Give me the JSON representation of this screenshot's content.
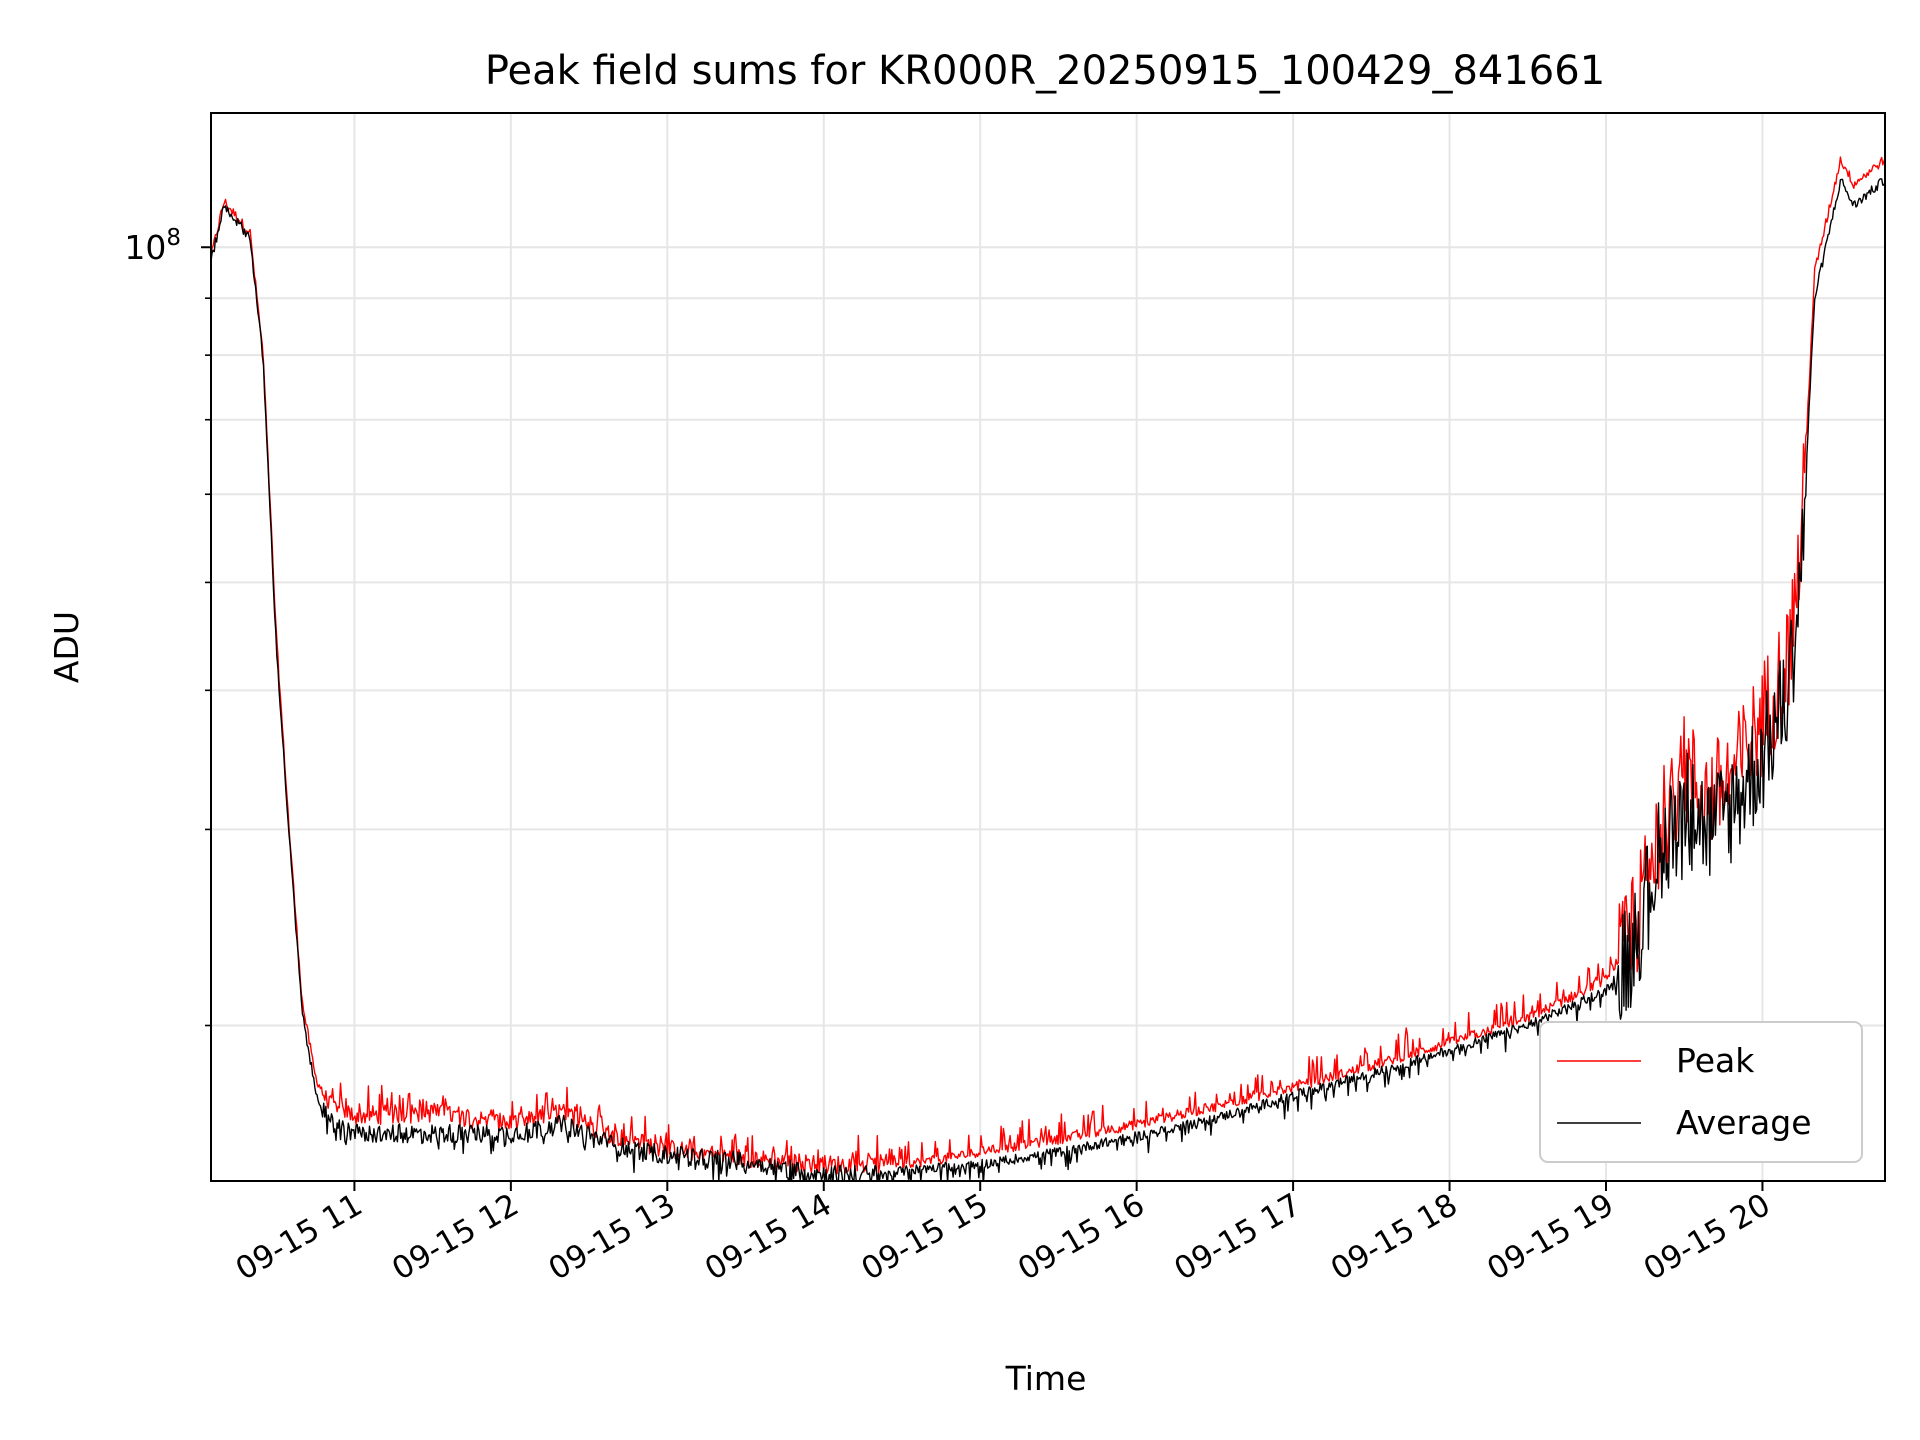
{
  "chart_data": {
    "type": "line",
    "title": "Peak field sums for KR000R_20250915_100429_841661",
    "xlabel": "Time",
    "ylabel": "ADU",
    "y_scale": "log",
    "x_range": [
      "2025-09-15 10:05",
      "2025-09-15 20:47"
    ],
    "ylim": [
      14500000,
      132000000
    ],
    "grid": true,
    "legend_position": "lower-right",
    "x_tick_labels": [
      "09-15 11",
      "09-15 12",
      "09-15 13",
      "09-15 14",
      "09-15 15",
      "09-15 16",
      "09-15 17",
      "09-15 18",
      "09-15 19",
      "09-15 20"
    ],
    "x_ticks": [
      "2025-09-15 11:00",
      "2025-09-15 12:00",
      "2025-09-15 13:00",
      "2025-09-15 14:00",
      "2025-09-15 15:00",
      "2025-09-15 16:00",
      "2025-09-15 17:00",
      "2025-09-15 18:00",
      "2025-09-15 19:00",
      "2025-09-15 20:00"
    ],
    "y_tick_major": {
      "value": 100000000,
      "base": "10",
      "exp": "8"
    },
    "y_minor_ticks": [
      20000000,
      30000000,
      40000000,
      50000000,
      60000000,
      70000000,
      80000000,
      90000000
    ],
    "series": [
      {
        "name": "Peak",
        "color": "#ff0000",
        "x": [
          "2025-09-15 10:05",
          "2025-09-15 10:10",
          "2025-09-15 10:20",
          "2025-09-15 10:25",
          "2025-09-15 10:30",
          "2025-09-15 10:35",
          "2025-09-15 10:40",
          "2025-09-15 10:45",
          "2025-09-15 10:50",
          "2025-09-15 11:00",
          "2025-09-15 11:30",
          "2025-09-15 12:00",
          "2025-09-15 12:20",
          "2025-09-15 12:40",
          "2025-09-15 13:00",
          "2025-09-15 13:30",
          "2025-09-15 14:00",
          "2025-09-15 14:20",
          "2025-09-15 14:40",
          "2025-09-15 15:00",
          "2025-09-15 15:30",
          "2025-09-15 16:00",
          "2025-09-15 16:30",
          "2025-09-15 17:00",
          "2025-09-15 17:30",
          "2025-09-15 18:00",
          "2025-09-15 18:30",
          "2025-09-15 19:00",
          "2025-09-15 19:10",
          "2025-09-15 19:20",
          "2025-09-15 19:30",
          "2025-09-15 19:40",
          "2025-09-15 19:50",
          "2025-09-15 20:00",
          "2025-09-15 20:10",
          "2025-09-15 20:15",
          "2025-09-15 20:20",
          "2025-09-15 20:30",
          "2025-09-15 20:35",
          "2025-09-15 20:47"
        ],
        "y": [
          98000000,
          110000000,
          103000000,
          80000000,
          45000000,
          30000000,
          21000000,
          18000000,
          17000000,
          16600000,
          16700000,
          16300000,
          16700000,
          15900000,
          15500000,
          15200000,
          15000000,
          15000000,
          15100000,
          15400000,
          15800000,
          16300000,
          16900000,
          17600000,
          18400000,
          19300000,
          20300000,
          22000000,
          24000000,
          30000000,
          34000000,
          32000000,
          34000000,
          38000000,
          43000000,
          55000000,
          95000000,
          120000000,
          114000000,
          120000000
        ]
      },
      {
        "name": "Average",
        "color": "#000000",
        "x": [
          "2025-09-15 10:05",
          "2025-09-15 10:10",
          "2025-09-15 10:20",
          "2025-09-15 10:25",
          "2025-09-15 10:30",
          "2025-09-15 10:35",
          "2025-09-15 10:40",
          "2025-09-15 10:45",
          "2025-09-15 10:50",
          "2025-09-15 11:00",
          "2025-09-15 11:30",
          "2025-09-15 12:00",
          "2025-09-15 12:20",
          "2025-09-15 12:40",
          "2025-09-15 13:00",
          "2025-09-15 13:30",
          "2025-09-15 14:00",
          "2025-09-15 14:20",
          "2025-09-15 14:40",
          "2025-09-15 15:00",
          "2025-09-15 15:30",
          "2025-09-15 16:00",
          "2025-09-15 16:30",
          "2025-09-15 17:00",
          "2025-09-15 17:30",
          "2025-09-15 18:00",
          "2025-09-15 18:30",
          "2025-09-15 19:00",
          "2025-09-15 19:10",
          "2025-09-15 19:20",
          "2025-09-15 19:30",
          "2025-09-15 19:40",
          "2025-09-15 19:50",
          "2025-09-15 20:00",
          "2025-09-15 20:10",
          "2025-09-15 20:15",
          "2025-09-15 20:20",
          "2025-09-15 20:30",
          "2025-09-15 20:35",
          "2025-09-15 20:47"
        ],
        "y": [
          97000000,
          109000000,
          102000000,
          79000000,
          44000000,
          29500000,
          20500000,
          17500000,
          16400000,
          16000000,
          16000000,
          16000000,
          16300000,
          15600000,
          15300000,
          15100000,
          14700000,
          14700000,
          14900000,
          15000000,
          15400000,
          15900000,
          16500000,
          17300000,
          18100000,
          19000000,
          20000000,
          21500000,
          23500000,
          28500000,
          32000000,
          30000000,
          32000000,
          35000000,
          40000000,
          52000000,
          90000000,
          115000000,
          109000000,
          115000000
        ]
      }
    ]
  }
}
